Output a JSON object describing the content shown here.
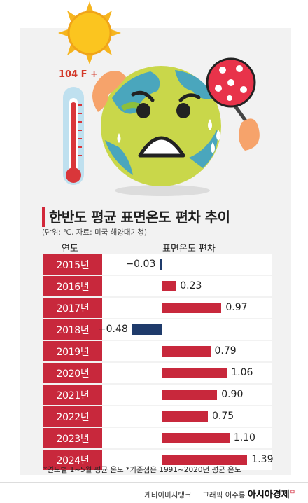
{
  "illustration": {
    "temperature_label": "104 F +",
    "icons": [
      "sun-icon",
      "thermometer-icon",
      "sweating-earth-icon",
      "hand-fan-icon"
    ]
  },
  "chart_data": {
    "type": "bar",
    "orientation": "horizontal",
    "title": "한반도 평균 표면온도 편차 추이",
    "subtitle": "(단위: ℃, 자료: 미국 해양대기청)",
    "category_header": "연도",
    "value_header": "표면온도 편차",
    "categories": [
      "2015년",
      "2016년",
      "2017년",
      "2018년",
      "2019년",
      "2020년",
      "2021년",
      "2022년",
      "2023년",
      "2024년"
    ],
    "values": [
      -0.03,
      0.23,
      0.97,
      -0.48,
      0.79,
      1.06,
      0.9,
      0.75,
      1.1,
      1.39
    ],
    "value_labels": [
      "−0.03",
      "0.23",
      "0.97",
      "−0.48",
      "0.79",
      "1.06",
      "0.90",
      "0.75",
      "1.10",
      "1.39"
    ],
    "colors": {
      "positive": "#c8283c",
      "negative": "#1f3b6b",
      "year_cell": "#c8283c"
    },
    "footnote": "*연도별 1~5월 평균 온도   *기준점은 1991~2020년 평균 온도"
  },
  "credits": {
    "image_source": "게티이미지뱅크",
    "graphic": "그래픽 이주룡",
    "brand": "아시아경제",
    "brand_mark": "ㅁ"
  }
}
